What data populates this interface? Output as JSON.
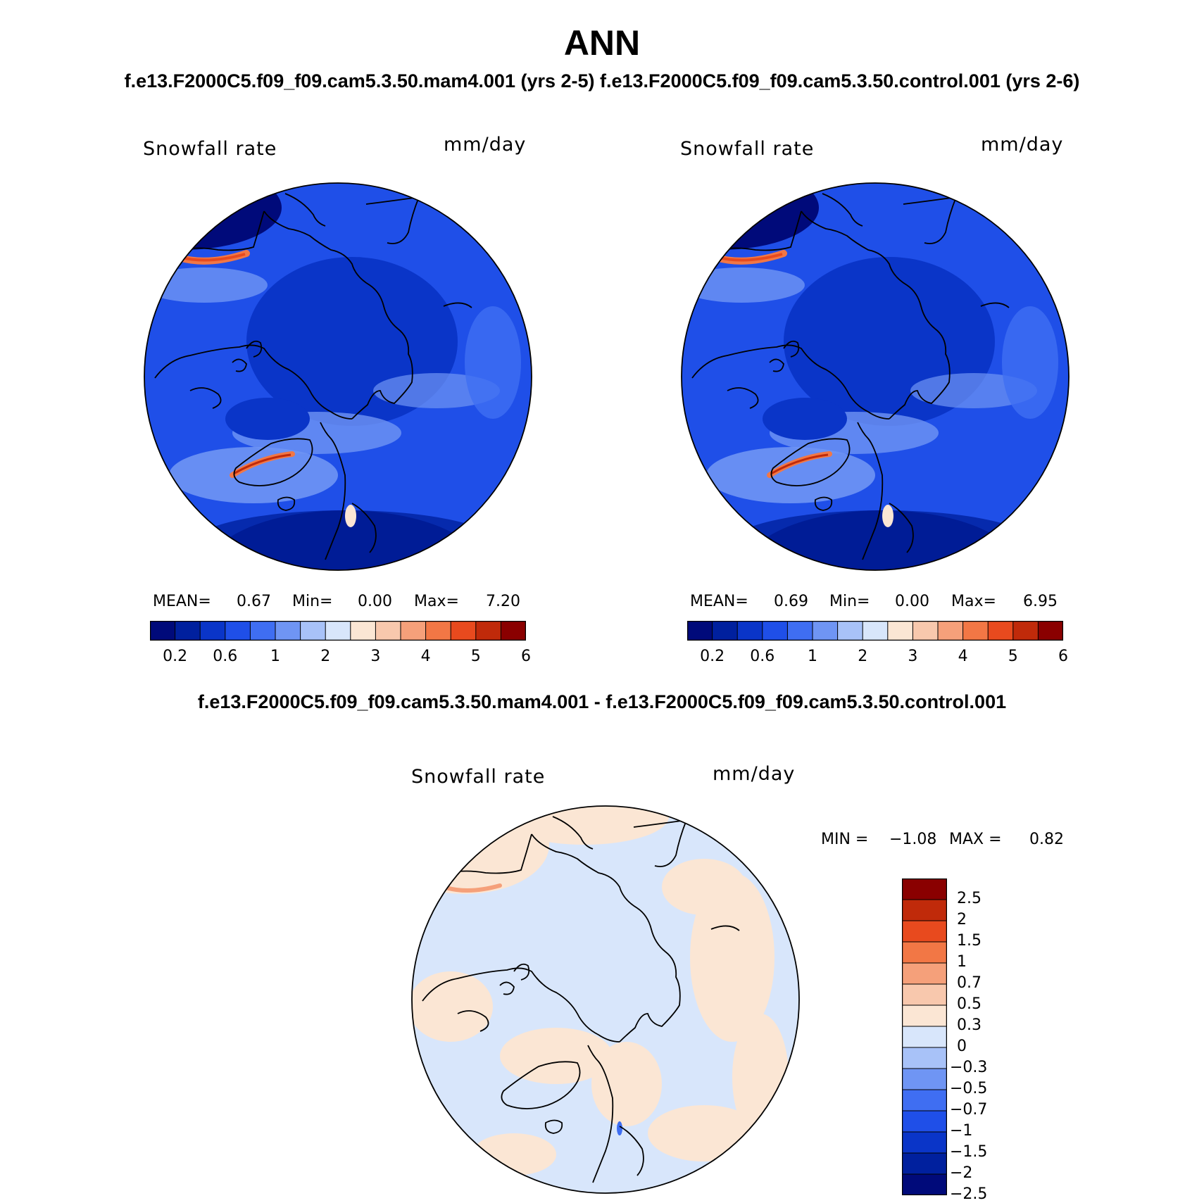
{
  "header": {
    "title": "ANN",
    "subtitle": "f.e13.F2000C5.f09_f09.cam5.3.50.mam4.001 (yrs 2-5) f.e13.F2000C5.f09_f09.cam5.3.50.control.001 (yrs 2-6)"
  },
  "panels": [
    {
      "variable": "Snowfall rate",
      "units": "mm/day",
      "stats": {
        "mean_label": "MEAN=",
        "mean": "0.67",
        "min_label": "Min=",
        "min": "0.00",
        "max_label": "Max=",
        "max": "7.20"
      },
      "colorbar_ticks": [
        "0.2",
        "0.6",
        "1",
        "2",
        "3",
        "4",
        "5",
        "6"
      ]
    },
    {
      "variable": "Snowfall rate",
      "units": "mm/day",
      "stats": {
        "mean_label": "MEAN=",
        "mean": "0.69",
        "min_label": "Min=",
        "min": "0.00",
        "max_label": "Max=",
        "max": "6.95"
      },
      "colorbar_ticks": [
        "0.2",
        "0.6",
        "1",
        "2",
        "3",
        "4",
        "5",
        "6"
      ]
    }
  ],
  "difference": {
    "title": "f.e13.F2000C5.f09_f09.cam5.3.50.mam4.001 - f.e13.F2000C5.f09_f09.cam5.3.50.control.001",
    "variable": "Snowfall rate",
    "units": "mm/day",
    "stats": {
      "min_label": "MIN =",
      "min": "−1.08",
      "max_label": "MAX =",
      "max": "0.82"
    },
    "colorbar_ticks": [
      "2.5",
      "2",
      "1.5",
      "1",
      "0.7",
      "0.5",
      "0.3",
      "0",
      "−0.3",
      "−0.5",
      "−0.7",
      "−1",
      "−1.5",
      "−2",
      "−2.5"
    ]
  },
  "colors": {
    "field_scale": [
      "#000a7a",
      "#00209e",
      "#0a35c8",
      "#1f4fe8",
      "#3f6ef2",
      "#6f95f4",
      "#a8c2f8",
      "#d8e6fb",
      "#fbe6d4",
      "#f8c8ad",
      "#f5a07a",
      "#f27745",
      "#e84a1e",
      "#c02a0a",
      "#8a0000"
    ],
    "diff_scale": [
      "#000a7a",
      "#00209e",
      "#0a35c8",
      "#1f4fe8",
      "#3f6ef2",
      "#6f95f4",
      "#a8c2f8",
      "#d8e6fb",
      "#fbe6d4",
      "#f8c8ad",
      "#f5a07a",
      "#f27745",
      "#e84a1e",
      "#c02a0a",
      "#8a0000"
    ]
  }
}
